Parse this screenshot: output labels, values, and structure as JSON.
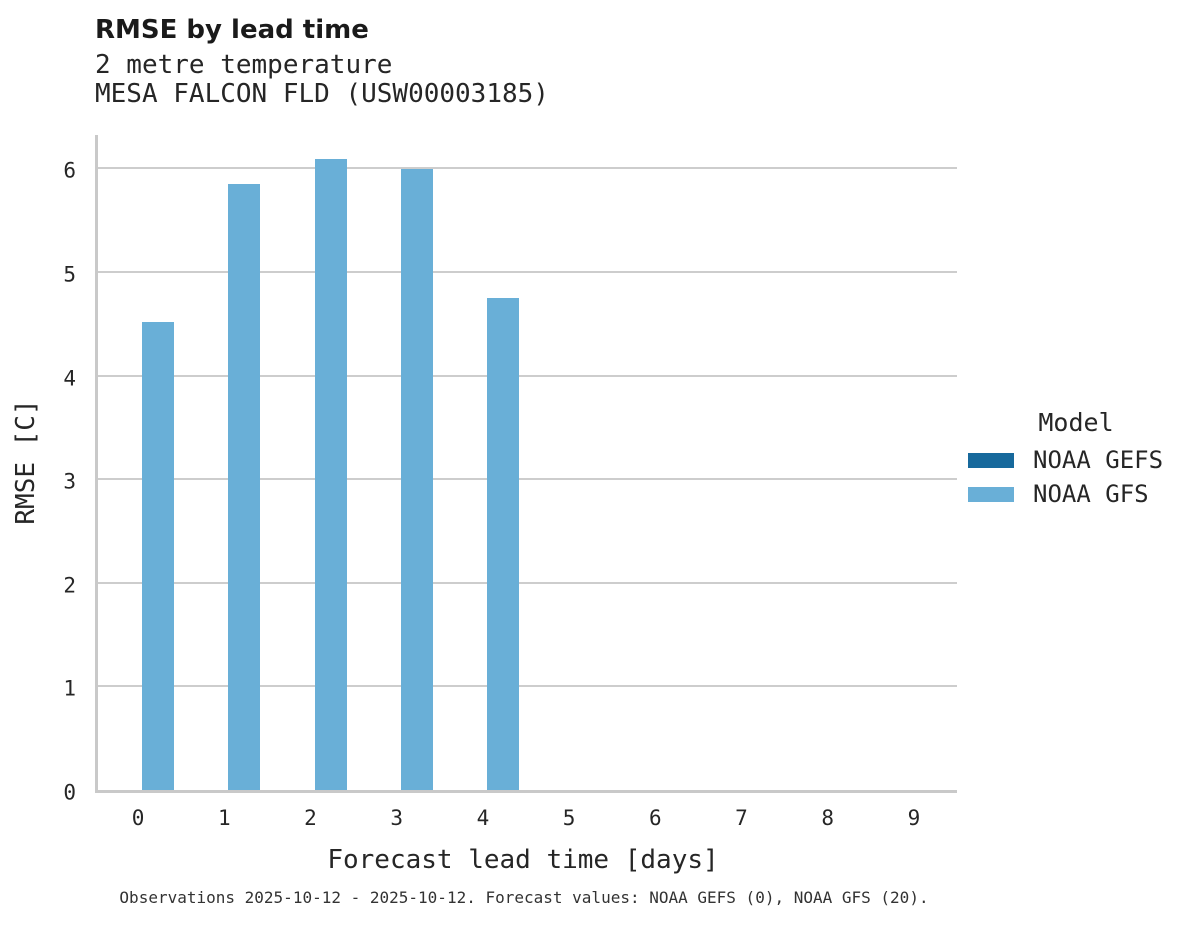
{
  "header": {
    "title": "RMSE by lead time",
    "subtitle1": "2 metre temperature",
    "subtitle2": "MESA FALCON FLD (USW00003185)"
  },
  "axes": {
    "ylabel": "RMSE [C]",
    "xlabel": "Forecast lead time [days]"
  },
  "legend": {
    "title": "Model",
    "items": [
      {
        "label": "NOAA GEFS",
        "color": "#17699c"
      },
      {
        "label": "NOAA GFS",
        "color": "#69afd7"
      }
    ]
  },
  "footer": {
    "text": "Observations 2025-10-12 - 2025-10-12. Forecast values: NOAA GEFS (0), NOAA GFS (20)."
  },
  "chart_data": {
    "type": "bar",
    "title": "RMSE by lead time",
    "subtitle": [
      "2 metre temperature",
      "MESA FALCON FLD (USW00003185)"
    ],
    "xlabel": "Forecast lead time [days]",
    "ylabel": "RMSE [C]",
    "categories": [
      "0",
      "1",
      "2",
      "3",
      "4",
      "5",
      "6",
      "7",
      "8",
      "9"
    ],
    "series": [
      {
        "name": "NOAA GEFS",
        "color": "#17699c",
        "values": [
          null,
          null,
          null,
          null,
          null,
          null,
          null,
          null,
          null,
          null
        ]
      },
      {
        "name": "NOAA GFS",
        "color": "#69afd7",
        "values": [
          4.52,
          5.85,
          6.09,
          5.99,
          4.75,
          null,
          null,
          null,
          null,
          null
        ]
      }
    ],
    "yticks": [
      0,
      1,
      2,
      3,
      4,
      5,
      6
    ],
    "ylim": [
      0,
      6.35
    ],
    "grid": "horizontal",
    "legend_position": "right",
    "grid_color": "#cdcdcd"
  }
}
